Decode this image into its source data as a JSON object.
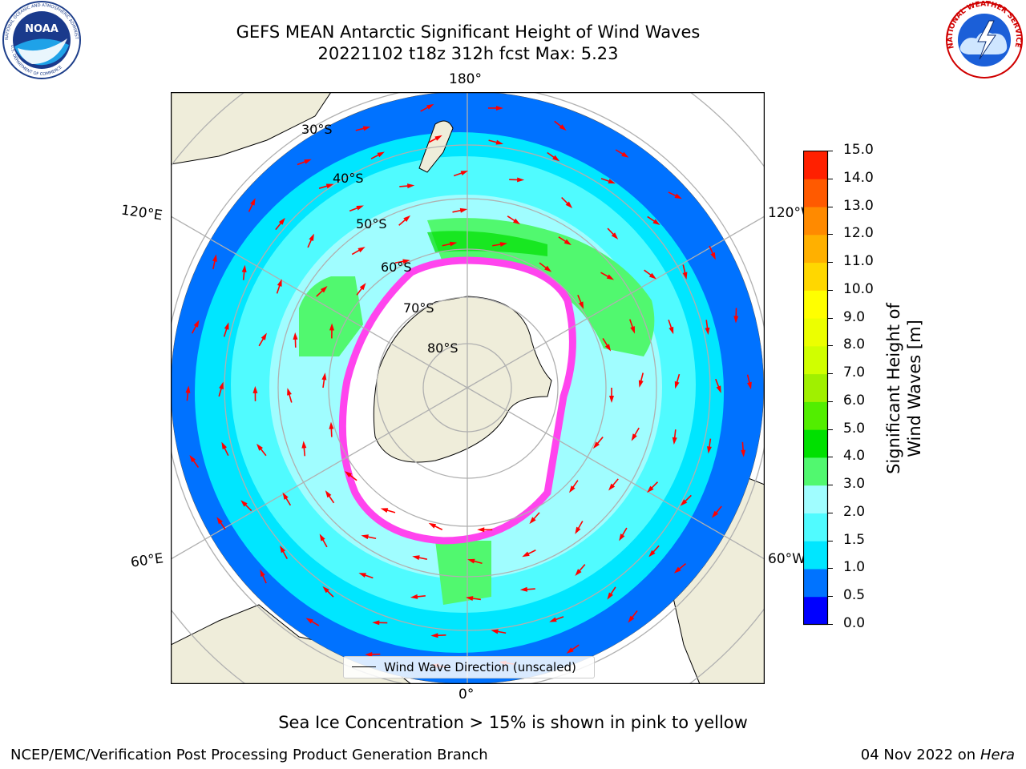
{
  "title": {
    "line1": "GEFS MEAN Antarctic Significant Height of Wind Waves",
    "line2": "20221102 t18z 312h fcst   Max: 5.23"
  },
  "logos": {
    "left": "NOAA",
    "left_ring_top": "NATIONAL OCEANIC AND ATMOSPHERIC ADMINISTRATION",
    "left_ring_bottom": "U.S. DEPARTMENT OF COMMERCE",
    "right_ring": "NATIONAL WEATHER SERVICE"
  },
  "map": {
    "longitude_labels": {
      "top": "180°",
      "bottom": "0°",
      "left_upper": "120°E",
      "left_lower": "60°E",
      "right_upper": "120°W",
      "right_lower": "60°W"
    },
    "latitude_labels": [
      "30°S",
      "40°S",
      "50°S",
      "60°S",
      "70°S",
      "80°S"
    ],
    "legend_label": "Wind Wave Direction (unscaled)",
    "colors": {
      "land": "#efedda",
      "ocean_blue": "#0072ff",
      "ocean_cyan": "#00eeff",
      "ocean_light": "#8cfcff",
      "green": "#55ee66",
      "ice": "#ff44ee",
      "arrow": "#ff0000"
    }
  },
  "colorbar": {
    "title": "Significant Height of Wind Waves [m]",
    "ticks": [
      "0.0",
      "0.5",
      "1.0",
      "1.5",
      "2.0",
      "3.0",
      "4.0",
      "5.0",
      "6.0",
      "7.0",
      "8.0",
      "9.0",
      "10.0",
      "11.0",
      "12.0",
      "13.0",
      "14.0",
      "15.0"
    ],
    "colors": [
      "#0000ff",
      "#0073ff",
      "#00e6ff",
      "#50fbff",
      "#a0fdff",
      "#51f86f",
      "#00e000",
      "#52ee00",
      "#a0f000",
      "#d0ff00",
      "#ecff00",
      "#ffff00",
      "#ffd700",
      "#ffb000",
      "#ff8a00",
      "#ff5a00",
      "#ff2000"
    ]
  },
  "note": "Sea Ice Concentration > 15% is shown in pink to yellow",
  "footer": {
    "left": "NCEP/EMC/Verification Post Processing Product Generation Branch",
    "right_date": "04 Nov 2022 on",
    "right_host": "Hera"
  }
}
